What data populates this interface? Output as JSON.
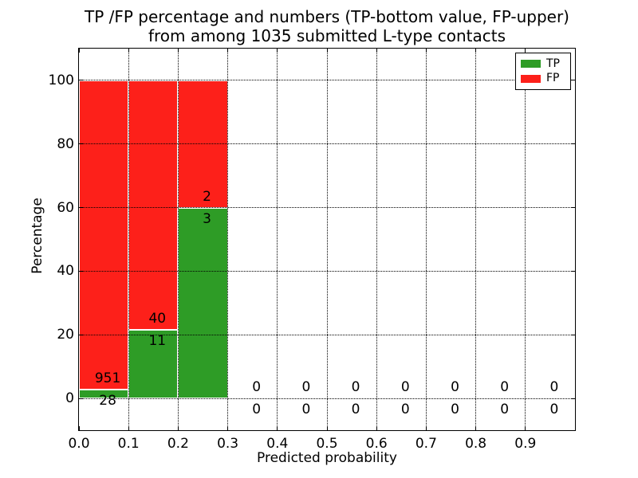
{
  "title": {
    "line1": "TP /FP percentage and numbers (TP-bottom value, FP-upper)",
    "line2": "from among 1035 submitted L-type contacts"
  },
  "chart_data": {
    "type": "bar",
    "stacked": true,
    "xlabel": "Predicted probability",
    "ylabel": "Percentage",
    "xlim": [
      0.0,
      1.0
    ],
    "ylim": [
      -10,
      110
    ],
    "grid": true,
    "bin_width": 0.1,
    "xticks": {
      "values": [
        0.0,
        0.1,
        0.2,
        0.3,
        0.4,
        0.5,
        0.6,
        0.7,
        0.8,
        0.9
      ],
      "labels": [
        "0.0",
        "0.1",
        "0.2",
        "0.3",
        "0.4",
        "0.5",
        "0.6",
        "0.7",
        "0.8",
        "0.9"
      ]
    },
    "yticks": {
      "values": [
        0,
        20,
        40,
        60,
        80,
        100
      ],
      "labels": [
        "0",
        "20",
        "40",
        "60",
        "80",
        "100"
      ]
    },
    "series": [
      {
        "name": "TP",
        "color": "#2e9c26"
      },
      {
        "name": "FP",
        "color": "#fd201a"
      }
    ],
    "legend": {
      "position": "upper right",
      "entries": [
        "TP",
        "FP"
      ]
    },
    "bins": [
      {
        "x_start": 0.0,
        "range": "0.0-0.1",
        "tp": 28,
        "fp": 951,
        "tp_pct": 2.86,
        "fp_pct": 97.14
      },
      {
        "x_start": 0.1,
        "range": "0.1-0.2",
        "tp": 11,
        "fp": 40,
        "tp_pct": 21.57,
        "fp_pct": 78.43
      },
      {
        "x_start": 0.2,
        "range": "0.2-0.3",
        "tp": 3,
        "fp": 2,
        "tp_pct": 60.0,
        "fp_pct": 40.0
      },
      {
        "x_start": 0.3,
        "range": "0.3-0.4",
        "tp": 0,
        "fp": 0,
        "tp_pct": 0,
        "fp_pct": 0
      },
      {
        "x_start": 0.4,
        "range": "0.4-0.5",
        "tp": 0,
        "fp": 0,
        "tp_pct": 0,
        "fp_pct": 0
      },
      {
        "x_start": 0.5,
        "range": "0.5-0.6",
        "tp": 0,
        "fp": 0,
        "tp_pct": 0,
        "fp_pct": 0
      },
      {
        "x_start": 0.6,
        "range": "0.6-0.7",
        "tp": 0,
        "fp": 0,
        "tp_pct": 0,
        "fp_pct": 0
      },
      {
        "x_start": 0.7,
        "range": "0.7-0.8",
        "tp": 0,
        "fp": 0,
        "tp_pct": 0,
        "fp_pct": 0
      },
      {
        "x_start": 0.8,
        "range": "0.8-0.9",
        "tp": 0,
        "fp": 0,
        "tp_pct": 0,
        "fp_pct": 0
      },
      {
        "x_start": 0.9,
        "range": "0.9-1.0",
        "tp": 0,
        "fp": 0,
        "tp_pct": 0,
        "fp_pct": 0
      }
    ]
  }
}
